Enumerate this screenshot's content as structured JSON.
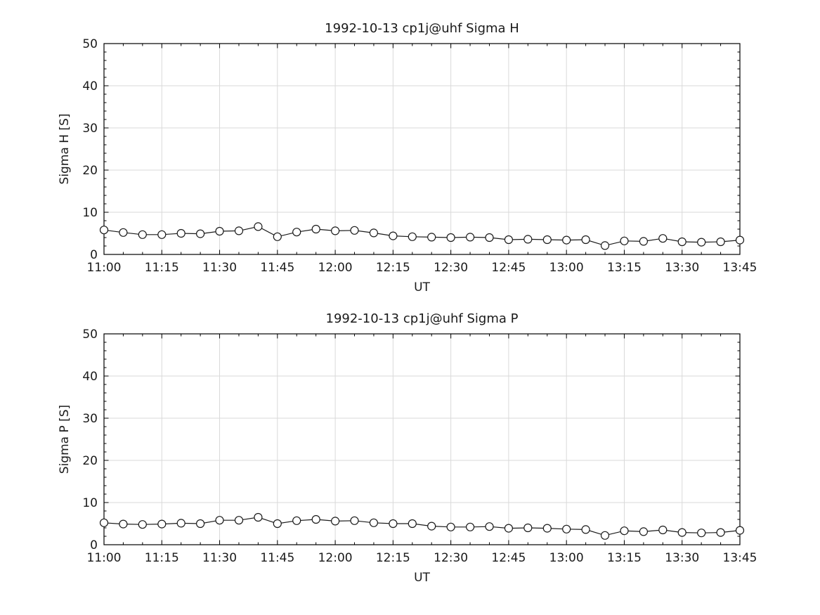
{
  "figure": {
    "background": "#ffffff",
    "frame_color": "#000000",
    "grid_color": "#d9d9d9",
    "line_color": "#1a1a1a",
    "marker": "open-circle"
  },
  "chart_data": [
    {
      "type": "line",
      "title": "1992-10-13  cp1j@uhf Sigma H",
      "xlabel": "UT",
      "ylabel": "Sigma H [S]",
      "ylim": [
        0,
        50
      ],
      "yticks": [
        0,
        10,
        20,
        30,
        40,
        50
      ],
      "y_minor_step": 2,
      "grid": true,
      "legend": "none",
      "x": [
        "11:00",
        "11:05",
        "11:10",
        "11:15",
        "11:20",
        "11:25",
        "11:30",
        "11:35",
        "11:40",
        "11:45",
        "11:50",
        "11:55",
        "12:00",
        "12:05",
        "12:10",
        "12:15",
        "12:20",
        "12:25",
        "12:30",
        "12:35",
        "12:40",
        "12:45",
        "12:50",
        "12:55",
        "13:00",
        "13:05",
        "13:10",
        "13:15",
        "13:20",
        "13:25",
        "13:30",
        "13:35",
        "13:40",
        "13:45"
      ],
      "xtick_labels": [
        "11:00",
        "11:15",
        "11:30",
        "11:45",
        "12:00",
        "12:15",
        "12:30",
        "12:45",
        "13:00",
        "13:15",
        "13:30",
        "13:45"
      ],
      "values": [
        5.8,
        5.2,
        4.7,
        4.7,
        5.0,
        4.9,
        5.5,
        5.6,
        6.6,
        4.2,
        5.3,
        6.0,
        5.6,
        5.7,
        5.1,
        4.4,
        4.2,
        4.1,
        4.0,
        4.1,
        4.0,
        3.5,
        3.6,
        3.5,
        3.4,
        3.5,
        2.1,
        3.2,
        3.1,
        3.8,
        3.0,
        2.9,
        3.0,
        3.4
      ]
    },
    {
      "type": "line",
      "title": "1992-10-13  cp1j@uhf Sigma P",
      "xlabel": "UT",
      "ylabel": "Sigma P [S]",
      "ylim": [
        0,
        50
      ],
      "yticks": [
        0,
        10,
        20,
        30,
        40,
        50
      ],
      "y_minor_step": 2,
      "grid": true,
      "legend": "none",
      "x": [
        "11:00",
        "11:05",
        "11:10",
        "11:15",
        "11:20",
        "11:25",
        "11:30",
        "11:35",
        "11:40",
        "11:45",
        "11:50",
        "11:55",
        "12:00",
        "12:05",
        "12:10",
        "12:15",
        "12:20",
        "12:25",
        "12:30",
        "12:35",
        "12:40",
        "12:45",
        "12:50",
        "12:55",
        "13:00",
        "13:05",
        "13:10",
        "13:15",
        "13:20",
        "13:25",
        "13:30",
        "13:35",
        "13:40",
        "13:45"
      ],
      "xtick_labels": [
        "11:00",
        "11:15",
        "11:30",
        "11:45",
        "12:00",
        "12:15",
        "12:30",
        "12:45",
        "13:00",
        "13:15",
        "13:30",
        "13:45"
      ],
      "values": [
        5.2,
        4.9,
        4.8,
        4.9,
        5.1,
        5.0,
        5.8,
        5.8,
        6.5,
        5.0,
        5.7,
        6.0,
        5.6,
        5.7,
        5.2,
        5.0,
        5.0,
        4.4,
        4.2,
        4.2,
        4.3,
        3.9,
        4.0,
        3.9,
        3.7,
        3.6,
        2.2,
        3.3,
        3.1,
        3.5,
        2.9,
        2.8,
        2.9,
        3.4
      ]
    }
  ]
}
